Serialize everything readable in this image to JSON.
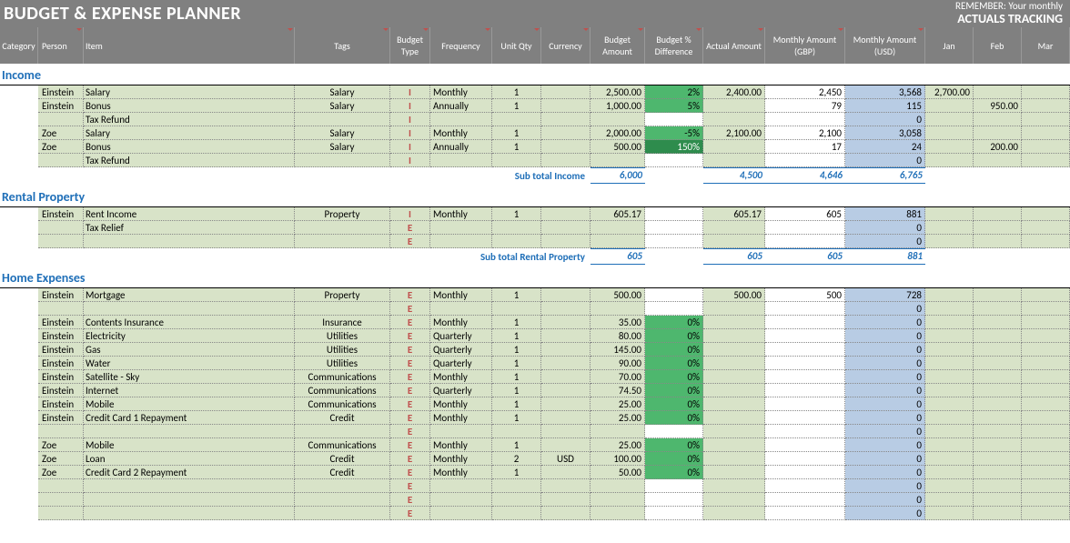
{
  "header": {
    "title": "BUDGET & EXPENSE PLANNER",
    "remember": "REMEMBER: Your monthly",
    "actuals": "ACTUALS TRACKING"
  },
  "columns": {
    "cat": "Category",
    "per": "Person",
    "item": "Item",
    "tags": "Tags",
    "btype": "Budget Type",
    "freq": "Frequency",
    "uqty": "Unit Qty",
    "curr": "Currency",
    "bamt": "Budget Amount",
    "bpct": "Budget % Difference",
    "aamt": "Actual Amount",
    "mgbp": "Monthly Amount  (GBP)",
    "musd": "Monthly Amount  (USD)",
    "jan": "Jan",
    "feb": "Feb",
    "mar": "Mar"
  },
  "sections": [
    {
      "title": "Income",
      "subtotal_label": "Sub total Income",
      "subtotal": {
        "bamt": "6,000",
        "aamt": "4,500",
        "mgbp": "4,646",
        "musd": "6,765"
      },
      "rows": [
        {
          "per": "Einstein",
          "item": "Salary",
          "tags": "Salary",
          "bt": "I",
          "freq": "Monthly",
          "uq": "1",
          "curr": "",
          "bamt": "2,500.00",
          "pct": "2%",
          "pctc": "pct-green",
          "aamt": "2,400.00",
          "mgbp": "2,450",
          "musd": "3,568",
          "jan": "2,700.00",
          "feb": "",
          "mar": ""
        },
        {
          "per": "Einstein",
          "item": "Bonus",
          "tags": "Salary",
          "bt": "I",
          "freq": "Annually",
          "uq": "1",
          "curr": "",
          "bamt": "1,000.00",
          "pct": "5%",
          "pctc": "pct-green",
          "aamt": "",
          "mgbp": "79",
          "musd": "115",
          "jan": "",
          "feb": "950.00",
          "mar": ""
        },
        {
          "per": "",
          "item": "Tax Refund",
          "tags": "",
          "bt": "I",
          "freq": "",
          "uq": "",
          "curr": "",
          "bamt": "",
          "pct": "",
          "pctc": "",
          "aamt": "",
          "mgbp": "",
          "musd": "0",
          "jan": "",
          "feb": "",
          "mar": ""
        },
        {
          "per": "Zoe",
          "item": "Salary",
          "tags": "Salary",
          "bt": "I",
          "freq": "Monthly",
          "uq": "1",
          "curr": "",
          "bamt": "2,000.00",
          "pct": "-5%",
          "pctc": "pct-green",
          "aamt": "2,100.00",
          "mgbp": "2,100",
          "musd": "3,058",
          "jan": "",
          "feb": "",
          "mar": ""
        },
        {
          "per": "Zoe",
          "item": "Bonus",
          "tags": "Salary",
          "bt": "I",
          "freq": "Annually",
          "uq": "1",
          "curr": "",
          "bamt": "500.00",
          "pct": "150%",
          "pctc": "pct-dgreen",
          "aamt": "",
          "mgbp": "17",
          "musd": "24",
          "jan": "",
          "feb": "200.00",
          "mar": ""
        },
        {
          "per": "",
          "item": "Tax Refund",
          "tags": "",
          "bt": "I",
          "freq": "",
          "uq": "",
          "curr": "",
          "bamt": "",
          "pct": "",
          "pctc": "",
          "aamt": "",
          "mgbp": "",
          "musd": "0",
          "jan": "",
          "feb": "",
          "mar": ""
        }
      ]
    },
    {
      "title": "Rental Property",
      "subtotal_label": "Sub total Rental Property",
      "subtotal": {
        "bamt": "605",
        "aamt": "605",
        "mgbp": "605",
        "musd": "881"
      },
      "rows": [
        {
          "per": "Einstein",
          "item": "Rent Income",
          "tags": "Property",
          "bt": "I",
          "freq": "Monthly",
          "uq": "1",
          "curr": "",
          "bamt": "605.17",
          "pct": "",
          "pctc": "",
          "aamt": "605.17",
          "mgbp": "605",
          "musd": "881",
          "jan": "",
          "feb": "",
          "mar": ""
        },
        {
          "per": "",
          "item": "Tax Relief",
          "tags": "",
          "bt": "E",
          "freq": "",
          "uq": "",
          "curr": "",
          "bamt": "",
          "pct": "",
          "pctc": "",
          "aamt": "",
          "mgbp": "",
          "musd": "0",
          "jan": "",
          "feb": "",
          "mar": ""
        },
        {
          "per": "",
          "item": "",
          "tags": "",
          "bt": "E",
          "freq": "",
          "uq": "",
          "curr": "",
          "bamt": "",
          "pct": "",
          "pctc": "",
          "aamt": "",
          "mgbp": "",
          "musd": "0",
          "jan": "",
          "feb": "",
          "mar": ""
        }
      ]
    },
    {
      "title": "Home Expenses",
      "subtotal_label": "",
      "subtotal": null,
      "rows": [
        {
          "per": "Einstein",
          "item": "Mortgage",
          "tags": "Property",
          "bt": "E",
          "freq": "Monthly",
          "uq": "1",
          "curr": "",
          "bamt": "500.00",
          "pct": "",
          "pctc": "",
          "aamt": "500.00",
          "mgbp": "500",
          "musd": "728",
          "jan": "",
          "feb": "",
          "mar": ""
        },
        {
          "per": "",
          "item": "",
          "tags": "",
          "bt": "E",
          "freq": "",
          "uq": "",
          "curr": "",
          "bamt": "",
          "pct": "",
          "pctc": "",
          "aamt": "",
          "mgbp": "",
          "musd": "0",
          "jan": "",
          "feb": "",
          "mar": ""
        },
        {
          "per": "Einstein",
          "item": "Contents Insurance",
          "tags": "Insurance",
          "bt": "E",
          "freq": "Monthly",
          "uq": "1",
          "curr": "",
          "bamt": "35.00",
          "pct": "0%",
          "pctc": "pct-green",
          "aamt": "",
          "mgbp": "",
          "musd": "0",
          "jan": "",
          "feb": "",
          "mar": ""
        },
        {
          "per": "Einstein",
          "item": "Electricity",
          "tags": "Utilities",
          "bt": "E",
          "freq": "Quarterly",
          "uq": "1",
          "curr": "",
          "bamt": "80.00",
          "pct": "0%",
          "pctc": "pct-green",
          "aamt": "",
          "mgbp": "",
          "musd": "0",
          "jan": "",
          "feb": "",
          "mar": ""
        },
        {
          "per": "Einstein",
          "item": "Gas",
          "tags": "Utilities",
          "bt": "E",
          "freq": "Quarterly",
          "uq": "1",
          "curr": "",
          "bamt": "145.00",
          "pct": "0%",
          "pctc": "pct-green",
          "aamt": "",
          "mgbp": "",
          "musd": "0",
          "jan": "",
          "feb": "",
          "mar": ""
        },
        {
          "per": "Einstein",
          "item": "Water",
          "tags": "Utilities",
          "bt": "E",
          "freq": "Quarterly",
          "uq": "1",
          "curr": "",
          "bamt": "90.00",
          "pct": "0%",
          "pctc": "pct-green",
          "aamt": "",
          "mgbp": "",
          "musd": "0",
          "jan": "",
          "feb": "",
          "mar": ""
        },
        {
          "per": "Einstein",
          "item": "Satellite - Sky",
          "tags": "Communications",
          "bt": "E",
          "freq": "Monthly",
          "uq": "1",
          "curr": "",
          "bamt": "70.00",
          "pct": "0%",
          "pctc": "pct-green",
          "aamt": "",
          "mgbp": "",
          "musd": "0",
          "jan": "",
          "feb": "",
          "mar": ""
        },
        {
          "per": "Einstein",
          "item": "Internet",
          "tags": "Communications",
          "bt": "E",
          "freq": "Quarterly",
          "uq": "1",
          "curr": "",
          "bamt": "74.50",
          "pct": "0%",
          "pctc": "pct-green",
          "aamt": "",
          "mgbp": "",
          "musd": "0",
          "jan": "",
          "feb": "",
          "mar": ""
        },
        {
          "per": "Einstein",
          "item": "Mobile",
          "tags": "Communications",
          "bt": "E",
          "freq": "Monthly",
          "uq": "1",
          "curr": "",
          "bamt": "25.00",
          "pct": "0%",
          "pctc": "pct-green",
          "aamt": "",
          "mgbp": "",
          "musd": "0",
          "jan": "",
          "feb": "",
          "mar": ""
        },
        {
          "per": "Einstein",
          "item": "Credit Card 1 Repayment",
          "tags": "Credit",
          "bt": "E",
          "freq": "Monthly",
          "uq": "1",
          "curr": "",
          "bamt": "25.00",
          "pct": "0%",
          "pctc": "pct-green",
          "aamt": "",
          "mgbp": "",
          "musd": "0",
          "jan": "",
          "feb": "",
          "mar": ""
        },
        {
          "per": "",
          "item": "",
          "tags": "",
          "bt": "E",
          "freq": "",
          "uq": "",
          "curr": "",
          "bamt": "",
          "pct": "",
          "pctc": "",
          "aamt": "",
          "mgbp": "",
          "musd": "0",
          "jan": "",
          "feb": "",
          "mar": ""
        },
        {
          "per": "Zoe",
          "item": "Mobile",
          "tags": "Communications",
          "bt": "E",
          "freq": "Monthly",
          "uq": "1",
          "curr": "",
          "bamt": "25.00",
          "pct": "0%",
          "pctc": "pct-green",
          "aamt": "",
          "mgbp": "",
          "musd": "0",
          "jan": "",
          "feb": "",
          "mar": ""
        },
        {
          "per": "Zoe",
          "item": "Loan",
          "tags": "Credit",
          "bt": "E",
          "freq": "Monthly",
          "uq": "2",
          "curr": "USD",
          "bamt": "100.00",
          "pct": "0%",
          "pctc": "pct-green",
          "aamt": "",
          "mgbp": "",
          "musd": "0",
          "jan": "",
          "feb": "",
          "mar": ""
        },
        {
          "per": "Zoe",
          "item": "Credit Card 2 Repayment",
          "tags": "Credit",
          "bt": "E",
          "freq": "Monthly",
          "uq": "1",
          "curr": "",
          "bamt": "50.00",
          "pct": "0%",
          "pctc": "pct-green",
          "aamt": "",
          "mgbp": "",
          "musd": "0",
          "jan": "",
          "feb": "",
          "mar": ""
        },
        {
          "per": "",
          "item": "",
          "tags": "",
          "bt": "E",
          "freq": "",
          "uq": "",
          "curr": "",
          "bamt": "",
          "pct": "",
          "pctc": "",
          "aamt": "",
          "mgbp": "",
          "musd": "0",
          "jan": "",
          "feb": "",
          "mar": ""
        },
        {
          "per": "",
          "item": "",
          "tags": "",
          "bt": "E",
          "freq": "",
          "uq": "",
          "curr": "",
          "bamt": "",
          "pct": "",
          "pctc": "",
          "aamt": "",
          "mgbp": "",
          "musd": "0",
          "jan": "",
          "feb": "",
          "mar": ""
        },
        {
          "per": "",
          "item": "",
          "tags": "",
          "bt": "E",
          "freq": "",
          "uq": "",
          "curr": "",
          "bamt": "",
          "pct": "",
          "pctc": "",
          "aamt": "",
          "mgbp": "",
          "musd": "0",
          "jan": "",
          "feb": "",
          "mar": ""
        }
      ]
    }
  ]
}
